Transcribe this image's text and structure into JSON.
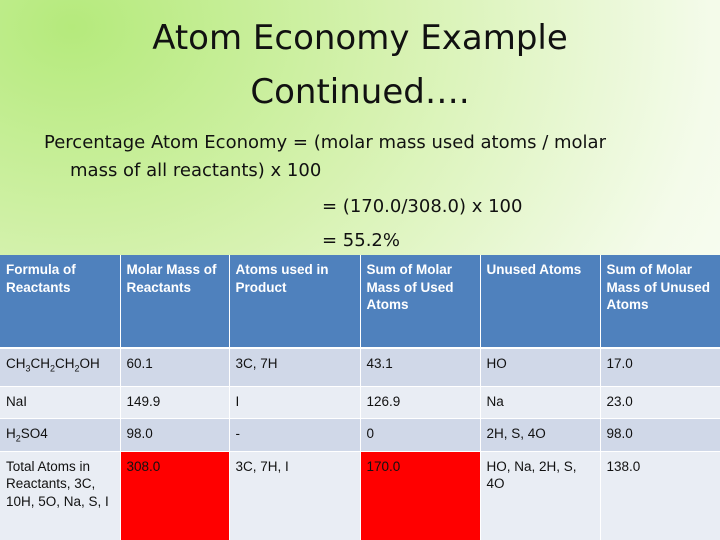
{
  "header": {
    "title_lines": [
      "Atom Economy Example",
      "Continued…."
    ]
  },
  "body": {
    "lines": [
      "Percentage Atom Economy = (molar mass used atoms / molar",
      "mass of all reactants) x 100",
      "= (170.0/308.0) x 100",
      "= 55.2%"
    ]
  },
  "table": {
    "header_fill": "#4f81bd",
    "row_fills": [
      "#d0d8e8",
      "#e9edf4"
    ],
    "columns": [
      "Formula of Reactants",
      "Molar Mass of Reactants",
      "Atoms used in Product",
      "Sum of Molar Mass of Used Atoms",
      "Unused Atoms",
      "Sum of Molar Mass of Unused Atoms"
    ],
    "rows": [
      [
        {
          "parts": [
            "CH",
            "3",
            "CH",
            "2",
            "CH",
            "2",
            "OH"
          ]
        },
        "60.1",
        "3C, 7H",
        "43.1",
        "HO",
        "17.0"
      ],
      [
        "NaI",
        "149.9",
        "I",
        "126.9",
        "Na",
        "23.0"
      ],
      [
        {
          "parts": [
            "H",
            "2",
            "SO4"
          ]
        },
        "98.0",
        "-",
        "0",
        "2H, S, 4O",
        "98.0"
      ],
      [
        "Total Atoms in Reactants, 3C, 10H, 5O, Na, S, I",
        {
          "text": "308.0",
          "fill": "#ff0000"
        },
        "3C, 7H, I",
        {
          "text": "170.0",
          "fill": "#ff0000"
        },
        "HO, Na, 2H, S, 4O",
        "138.0"
      ]
    ]
  }
}
